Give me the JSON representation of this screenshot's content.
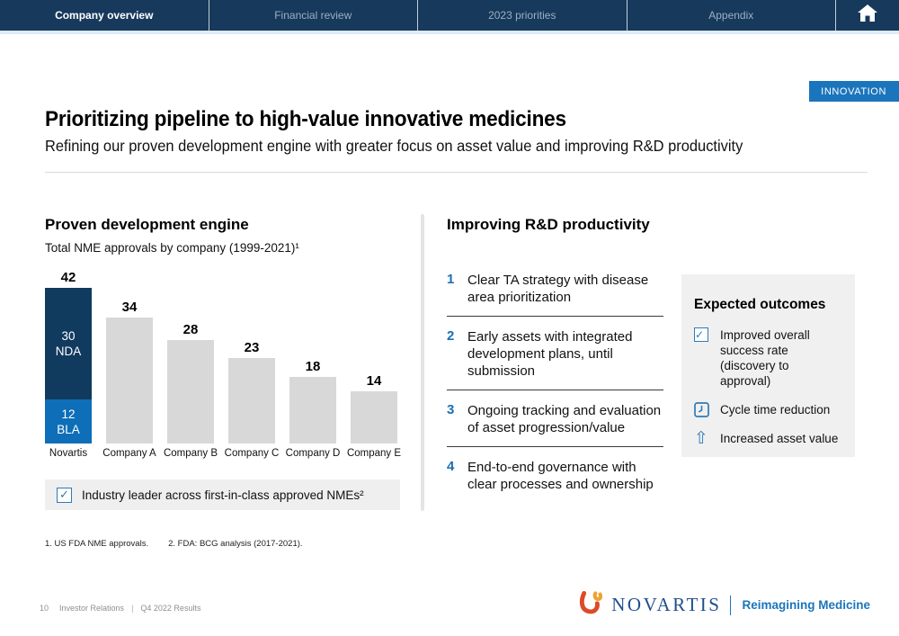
{
  "nav": {
    "tabs": [
      {
        "label": "Company overview",
        "active": true
      },
      {
        "label": "Financial review",
        "active": false
      },
      {
        "label": "2023 priorities",
        "active": false
      },
      {
        "label": "Appendix",
        "active": false
      }
    ]
  },
  "badge": "INNOVATION",
  "header": {
    "title": "Prioritizing pipeline to high-value innovative medicines",
    "subtitle": "Refining our proven development engine with greater focus on asset value and improving R&D productivity"
  },
  "left": {
    "heading": "Proven development engine",
    "chart_caption": "Total NME approvals by company (1999-2021)¹",
    "callout": "Industry leader across first-in-class approved NMEs²"
  },
  "chart_data": {
    "type": "bar",
    "title": "Total NME approvals by company (1999-2021)",
    "categories": [
      "Novartis",
      "Company A",
      "Company B",
      "Company C",
      "Company D",
      "Company E"
    ],
    "values": [
      42,
      34,
      28,
      23,
      18,
      14
    ],
    "novartis_segments": [
      {
        "label": "NDA",
        "value": 30
      },
      {
        "label": "BLA",
        "value": 12
      }
    ],
    "ylim": [
      0,
      42
    ],
    "grid": false,
    "colors": {
      "nda": "#113A5F",
      "bla": "#0E6EB8",
      "other_bars": "#D8D8D8"
    }
  },
  "right": {
    "heading": "Improving R&D productivity",
    "items": [
      {
        "num": "1",
        "text": "Clear TA strategy with disease area prioritization"
      },
      {
        "num": "2",
        "text": "Early assets with integrated development plans, until submission"
      },
      {
        "num": "3",
        "text": "Ongoing tracking and evaluation of asset progression/value"
      },
      {
        "num": "4",
        "text": "End-to-end governance with clear processes and ownership"
      }
    ]
  },
  "outcomes": {
    "heading": "Expected outcomes",
    "items": [
      {
        "icon": "checkbox-icon",
        "text": "Improved overall success rate (discovery to approval)"
      },
      {
        "icon": "clock-icon",
        "text": "Cycle time reduction"
      },
      {
        "icon": "arrow-up-icon",
        "text": "Increased asset value"
      }
    ]
  },
  "footnotes": [
    "1. US FDA NME approvals.",
    "2. FDA: BCG analysis (2017-2021)."
  ],
  "footer": {
    "page_number": "10",
    "section": "Investor Relations",
    "report": "Q4 2022 Results",
    "logo_text": "NOVARTIS",
    "tagline": "Reimagining Medicine"
  },
  "colors": {
    "nav_navy": "#16395C",
    "accent_blue": "#1B75BC",
    "step_number_blue": "#1B6FB5",
    "box_gray": "#F0F0F0",
    "bar_gray": "#D8D8D8"
  }
}
